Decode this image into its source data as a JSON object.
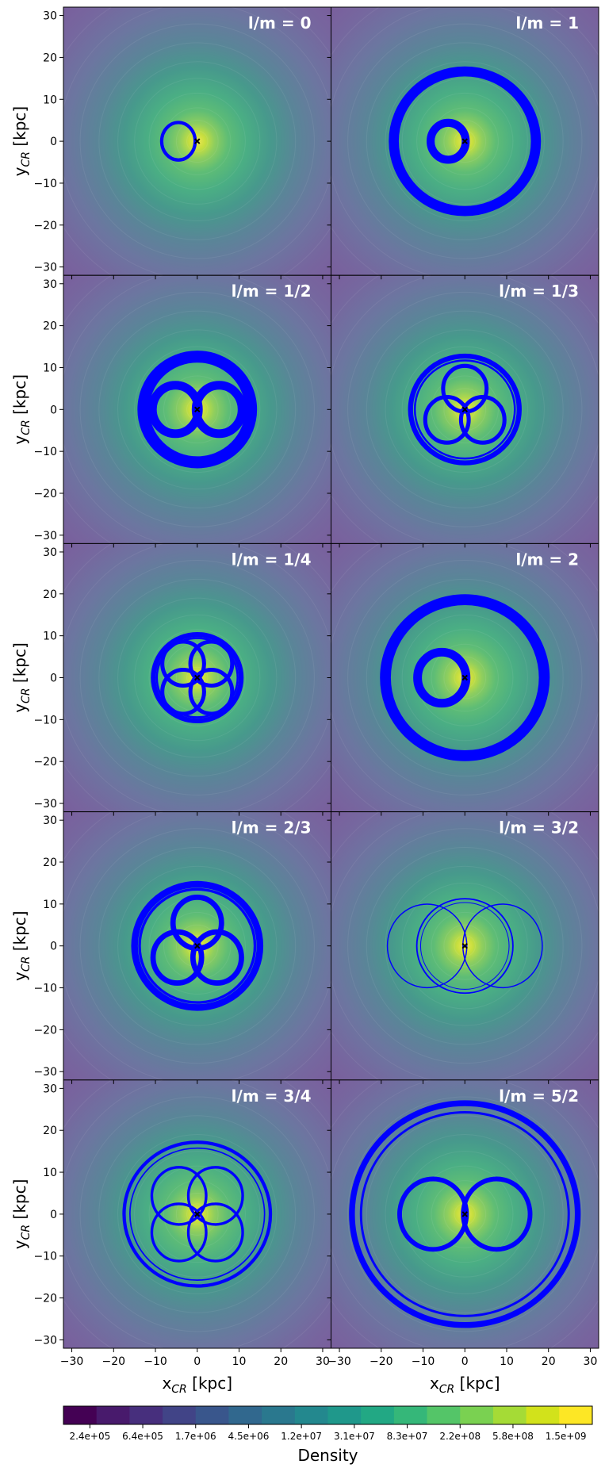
{
  "chart_data": {
    "type": "contour",
    "layout": {
      "rows": 5,
      "cols": 2,
      "sharex": true,
      "sharey": true
    },
    "xlabel": "x",
    "xlabel_sub": "CR",
    "xlabel_unit": " [kpc]",
    "ylabel": "y",
    "ylabel_sub": "CR",
    "ylabel_unit": " [kpc]",
    "xlim": [
      -32,
      32
    ],
    "ylim": [
      -32,
      32
    ],
    "xticks": [
      -30,
      -20,
      -10,
      0,
      10,
      20,
      30
    ],
    "yticks": [
      -30,
      -20,
      -10,
      0,
      10,
      20,
      30
    ],
    "panels": [
      {
        "label": "l/m  = 0",
        "orbit": {
          "kind": "rosette",
          "lobes": 1,
          "center_x": -4.5,
          "radius": 4.0,
          "band": 0.8
        }
      },
      {
        "label": "l/m  = 1",
        "orbit": {
          "kind": "loop_outer",
          "lobes": 1,
          "inner_radius": 4.2,
          "outer_radius": 17.0,
          "band": 2.4
        }
      },
      {
        "label": "l/m  = 1/2",
        "orbit": {
          "kind": "loop_outer",
          "lobes": 2,
          "inner_radius": 5.5,
          "outer_radius": 13.0,
          "band": 2.6
        }
      },
      {
        "label": "l/m  = 1/3",
        "orbit": {
          "kind": "loop_outer",
          "lobes": 3,
          "inner_radius": 5.2,
          "outer_radius": 13.0,
          "band": 1.2
        }
      },
      {
        "label": "l/m  = 1/4",
        "orbit": {
          "kind": "loop_outer",
          "lobes": 4,
          "inner_radius": 5.0,
          "outer_radius": 10.5,
          "band": 1.2
        }
      },
      {
        "label": "l/m  = 2",
        "orbit": {
          "kind": "loop_outer",
          "lobes": 1,
          "inner_radius": 5.8,
          "outer_radius": 19.0,
          "band": 2.6
        }
      },
      {
        "label": "l/m  = 2/3",
        "orbit": {
          "kind": "loop_outer",
          "lobes": 3,
          "inner_radius": 5.8,
          "outer_radius": 15.0,
          "band": 1.6
        }
      },
      {
        "label": "l/m  = 3/2",
        "orbit": {
          "kind": "loop_outer",
          "lobes": 2,
          "inner_radius": 9.5,
          "outer_radius": 11.5,
          "band": 0.35
        }
      },
      {
        "label": "l/m  = 3/4",
        "orbit": {
          "kind": "loop_outer",
          "lobes": 4,
          "inner_radius": 6.5,
          "outer_radius": 17.5,
          "band": 0.8
        }
      },
      {
        "label": "l/m  = 5/2",
        "orbit": {
          "kind": "loop_outer",
          "lobes": 2,
          "inner_radius": 8.0,
          "outer_radius": 27.0,
          "band": 1.4
        }
      }
    ],
    "colorbar": {
      "label": "Density",
      "ticks": [
        "2.4e+05",
        "6.4e+05",
        "1.7e+06",
        "4.5e+06",
        "1.2e+07",
        "3.1e+07",
        "8.3e+07",
        "2.2e+08",
        "5.8e+08",
        "1.5e+09"
      ],
      "colors": [
        "#440154",
        "#481a6c",
        "#472f7d",
        "#414487",
        "#39568c",
        "#31688e",
        "#2a788e",
        "#23888e",
        "#1f988b",
        "#22a884",
        "#35b779",
        "#54c568",
        "#7ad151",
        "#a5db36",
        "#d2e21b",
        "#fde725"
      ]
    },
    "orbit_color": "#0000ff",
    "center_marker": "x"
  }
}
